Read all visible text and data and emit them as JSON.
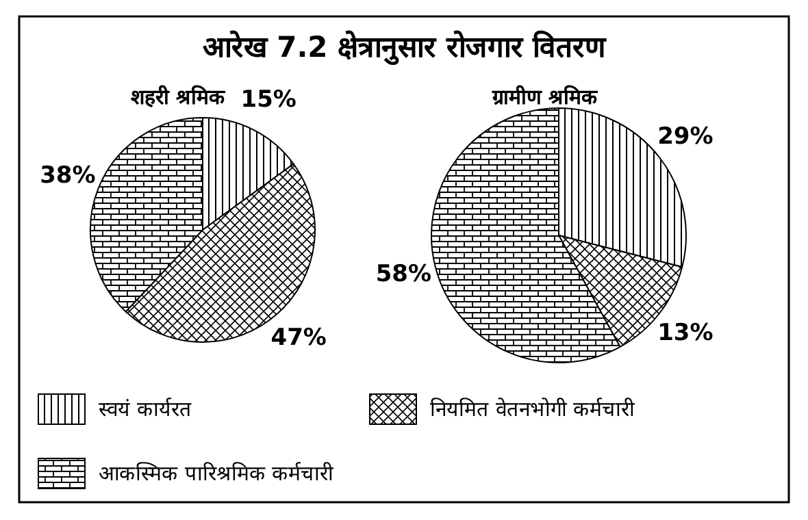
{
  "chart_data": [
    {
      "type": "pie",
      "title": "आरेख 7.2 क्षेत्रानुसार रोजगार वितरण",
      "subtitle": "शहरी श्रमिक",
      "categories": [
        "स्वयं कार्यरत",
        "नियमित वेतनभोगी कर्मचारी",
        "आकस्मिक पारिश्रमिक कर्मचारी"
      ],
      "values": [
        15,
        47,
        38
      ],
      "value_labels": [
        "15%",
        "47%",
        "38%"
      ],
      "colors": [
        "#000000",
        "#000000",
        "#000000"
      ],
      "legend": "bottom"
    },
    {
      "type": "pie",
      "subtitle": "ग्रामीण श्रमिक",
      "categories": [
        null,
        null,
        null
      ],
      "values": [
        29,
        13,
        58
      ],
      "value_labels": [
        "29%",
        "13%",
        "58%"
      ],
      "colors": [
        "#000000",
        "#000000",
        "#000000"
      ]
    }
  ]
}
